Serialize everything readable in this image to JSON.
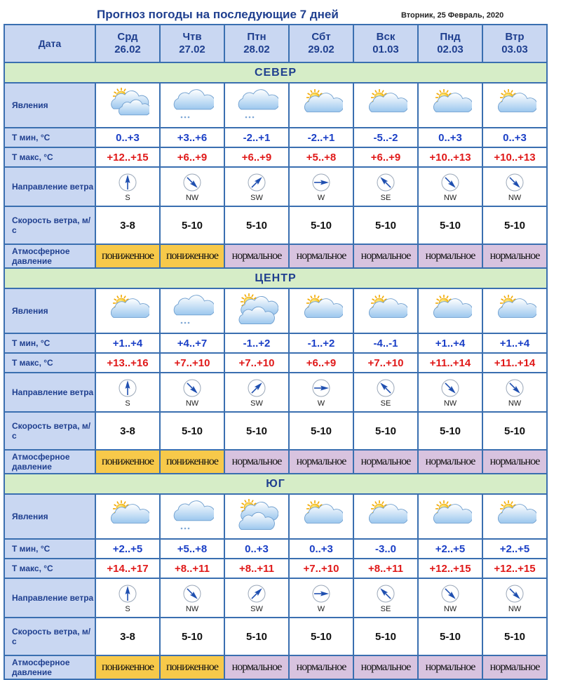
{
  "title": "Прогноз погоды на последующие 7 дней",
  "date_label": "Вторник, 25 Февраль, 2020",
  "colors": {
    "border": "#3a6fb0",
    "header_bg": "#c9d7f2",
    "region_bg": "#d6edc7",
    "tmin": "#1a3fc6",
    "tmax": "#e01919",
    "pressure_low": "#f7c94a",
    "pressure_normal": "#d8c3df"
  },
  "labels": {
    "date": "Дата",
    "phenomena": "Явления",
    "tmin": "Т мин, °С",
    "tmax": "Т макс, °С",
    "wind_dir": "Направление ветра",
    "wind_speed": "Скорость ветра, м/с",
    "pressure": "Атмосферное давление"
  },
  "days": [
    {
      "name": "Срд",
      "date": "26.02"
    },
    {
      "name": "Чтв",
      "date": "27.02"
    },
    {
      "name": "Птн",
      "date": "28.02"
    },
    {
      "name": "Сбт",
      "date": "29.02"
    },
    {
      "name": "Вск",
      "date": "01.03"
    },
    {
      "name": "Пнд",
      "date": "02.03"
    },
    {
      "name": "Втр",
      "date": "03.03"
    }
  ],
  "regions": [
    {
      "name": "СЕВЕР",
      "icons": [
        "sun-cloud-rain-icon",
        "cloud-snow-icon",
        "cloud-snow-icon",
        "sun-cloud-icon",
        "sun-cloud-icon",
        "sun-cloud-icon",
        "sun-cloud-icon"
      ],
      "tmin": [
        "0..+3",
        "+3..+6",
        "-2..+1",
        "-2..+1",
        "-5..-2",
        "0..+3",
        "0..+3"
      ],
      "tmax": [
        "+12..+15",
        "+6..+9",
        "+6..+9",
        "+5..+8",
        "+6..+9",
        "+10..+13",
        "+10..+13"
      ],
      "wind_dir": [
        "S",
        "NW",
        "SW",
        "W",
        "SE",
        "NW",
        "NW"
      ],
      "wind_speed": [
        "3-8",
        "5-10",
        "5-10",
        "5-10",
        "5-10",
        "5-10",
        "5-10"
      ],
      "pressure": [
        "пониженное",
        "пониженное",
        "нормальное",
        "нормальное",
        "нормальное",
        "нормальное",
        "нормальное"
      ],
      "pressure_kind": [
        "low",
        "low",
        "normal",
        "normal",
        "normal",
        "normal",
        "normal"
      ]
    },
    {
      "name": "ЦЕНТР",
      "icons": [
        "sun-cloud-icon",
        "cloud-snow-icon",
        "sun-cloud-double-icon",
        "sun-cloud-icon",
        "sun-cloud-icon",
        "sun-cloud-icon",
        "sun-cloud-icon"
      ],
      "tmin": [
        "+1..+4",
        "+4..+7",
        "-1..+2",
        "-1..+2",
        "-4..-1",
        "+1..+4",
        "+1..+4"
      ],
      "tmax": [
        "+13..+16",
        "+7..+10",
        "+7..+10",
        "+6..+9",
        "+7..+10",
        "+11..+14",
        "+11..+14"
      ],
      "wind_dir": [
        "S",
        "NW",
        "SW",
        "W",
        "SE",
        "NW",
        "NW"
      ],
      "wind_speed": [
        "3-8",
        "5-10",
        "5-10",
        "5-10",
        "5-10",
        "5-10",
        "5-10"
      ],
      "pressure": [
        "пониженное",
        "пониженное",
        "нормальное",
        "нормальное",
        "нормальное",
        "нормальное",
        "нормальное"
      ],
      "pressure_kind": [
        "low",
        "low",
        "normal",
        "normal",
        "normal",
        "normal",
        "normal"
      ]
    },
    {
      "name": "ЮГ",
      "icons": [
        "sun-cloud-icon",
        "cloud-snow-icon",
        "sun-cloud-double-icon",
        "sun-cloud-icon",
        "sun-cloud-icon",
        "sun-cloud-icon",
        "sun-cloud-icon"
      ],
      "tmin": [
        "+2..+5",
        "+5..+8",
        "0..+3",
        "0..+3",
        "-3..0",
        "+2..+5",
        "+2..+5"
      ],
      "tmax": [
        "+14..+17",
        "+8..+11",
        "+8..+11",
        "+7..+10",
        "+8..+11",
        "+12..+15",
        "+12..+15"
      ],
      "wind_dir": [
        "S",
        "NW",
        "SW",
        "W",
        "SE",
        "NW",
        "NW"
      ],
      "wind_speed": [
        "3-8",
        "5-10",
        "5-10",
        "5-10",
        "5-10",
        "5-10",
        "5-10"
      ],
      "pressure": [
        "пониженное",
        "пониженное",
        "нормальное",
        "нормальное",
        "нормальное",
        "нормальное",
        "нормальное"
      ],
      "pressure_kind": [
        "low",
        "low",
        "normal",
        "normal",
        "normal",
        "normal",
        "normal"
      ]
    }
  ]
}
